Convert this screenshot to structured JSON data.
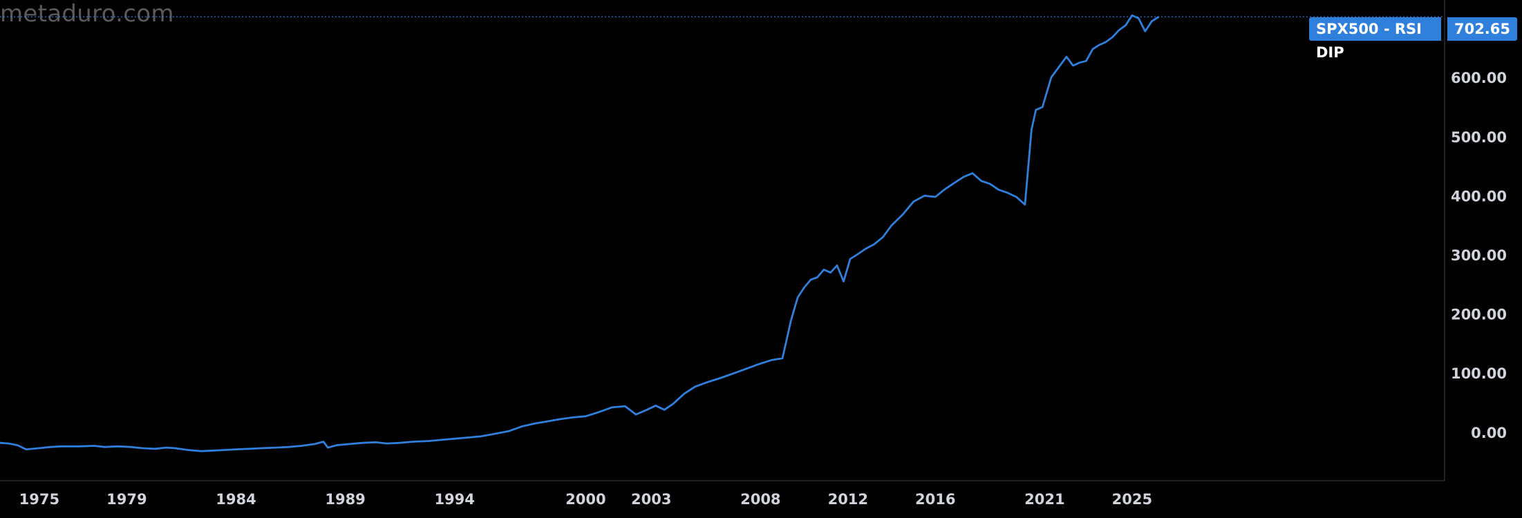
{
  "watermark": "metaduro.com",
  "series_label": "SPX500 - RSI DIP",
  "last_value": "702.65",
  "colors": {
    "background": "#000000",
    "line": "#2f7fdc",
    "axis_text": "#d1d4dc",
    "badge": "#2f7fdc"
  },
  "chart_data": {
    "type": "line",
    "title": "",
    "xlabel": "",
    "ylabel": "",
    "ylim": [
      -82,
      731
    ],
    "xlim": [
      1973.2,
      2039.3
    ],
    "y_ticks": [
      "600.00",
      "500.00",
      "400.00",
      "300.00",
      "200.00",
      "100.00",
      "0.00"
    ],
    "x_ticks": [
      "1975",
      "1979",
      "1984",
      "1989",
      "1994",
      "2000",
      "2003",
      "2008",
      "2012",
      "2016",
      "2021",
      "2025"
    ],
    "last_value_line": 702.65,
    "series": [
      {
        "name": "SPX500 - RSI DIP",
        "x": [
          1973.2,
          1973.6,
          1974.0,
          1974.4,
          1975.0,
          1975.5,
          1976.0,
          1976.8,
          1977.5,
          1978.0,
          1978.6,
          1979.2,
          1979.7,
          1980.3,
          1980.8,
          1981.2,
          1981.8,
          1982.4,
          1983.0,
          1983.5,
          1984.0,
          1984.6,
          1985.2,
          1985.8,
          1986.4,
          1987.0,
          1987.6,
          1988.0,
          1988.2,
          1988.6,
          1989.2,
          1989.8,
          1990.4,
          1990.9,
          1991.5,
          1992.1,
          1992.8,
          1993.4,
          1994.0,
          1994.6,
          1995.2,
          1995.8,
          1996.5,
          1997.1,
          1997.7,
          1998.2,
          1998.8,
          1999.4,
          2000.0,
          2000.6,
          2001.2,
          2001.8,
          2002.3,
          2002.8,
          2003.2,
          2003.6,
          2004.0,
          2004.5,
          2005.0,
          2005.6,
          2006.2,
          2006.8,
          2007.4,
          2007.9,
          2008.5,
          2009.0,
          2009.4,
          2009.7,
          2010.0,
          2010.3,
          2010.6,
          2010.9,
          2011.2,
          2011.5,
          2011.8,
          2012.1,
          2012.4,
          2012.8,
          2013.2,
          2013.6,
          2014.0,
          2014.5,
          2015.0,
          2015.5,
          2016.0,
          2016.4,
          2016.8,
          2017.3,
          2017.7,
          2018.1,
          2018.5,
          2018.9,
          2019.3,
          2019.7,
          2020.1,
          2020.4,
          2020.6,
          2020.9,
          2021.3,
          2021.7,
          2022.0,
          2022.3,
          2022.6,
          2022.9,
          2023.2,
          2023.5,
          2023.8,
          2024.1,
          2024.4,
          2024.7,
          2025.0,
          2025.3,
          2025.6,
          2025.9,
          2026.2
        ],
        "values": [
          -18,
          -19,
          -22,
          -29,
          -27,
          -25,
          -24,
          -24,
          -23,
          -25,
          -24,
          -25,
          -27,
          -28,
          -26,
          -27,
          -30,
          -32,
          -31,
          -30,
          -29,
          -28,
          -27,
          -26,
          -25,
          -23,
          -20,
          -16,
          -26,
          -22,
          -20,
          -18,
          -17,
          -19,
          -18,
          -16,
          -15,
          -13,
          -11,
          -9,
          -7,
          -3,
          2,
          10,
          15,
          18,
          22,
          25,
          27,
          34,
          42,
          44,
          30,
          38,
          45,
          38,
          48,
          65,
          77,
          85,
          92,
          100,
          108,
          115,
          122,
          125,
          190,
          228,
          245,
          258,
          262,
          275,
          270,
          282,
          255,
          293,
          300,
          310,
          318,
          330,
          350,
          368,
          390,
          400,
          398,
          410,
          420,
          432,
          438,
          425,
          420,
          410,
          405,
          398,
          385,
          512,
          545,
          550,
          600,
          620,
          635,
          620,
          625,
          628,
          648,
          655,
          660,
          668,
          680,
          688,
          705,
          700,
          678,
          695,
          702
        ]
      }
    ]
  }
}
